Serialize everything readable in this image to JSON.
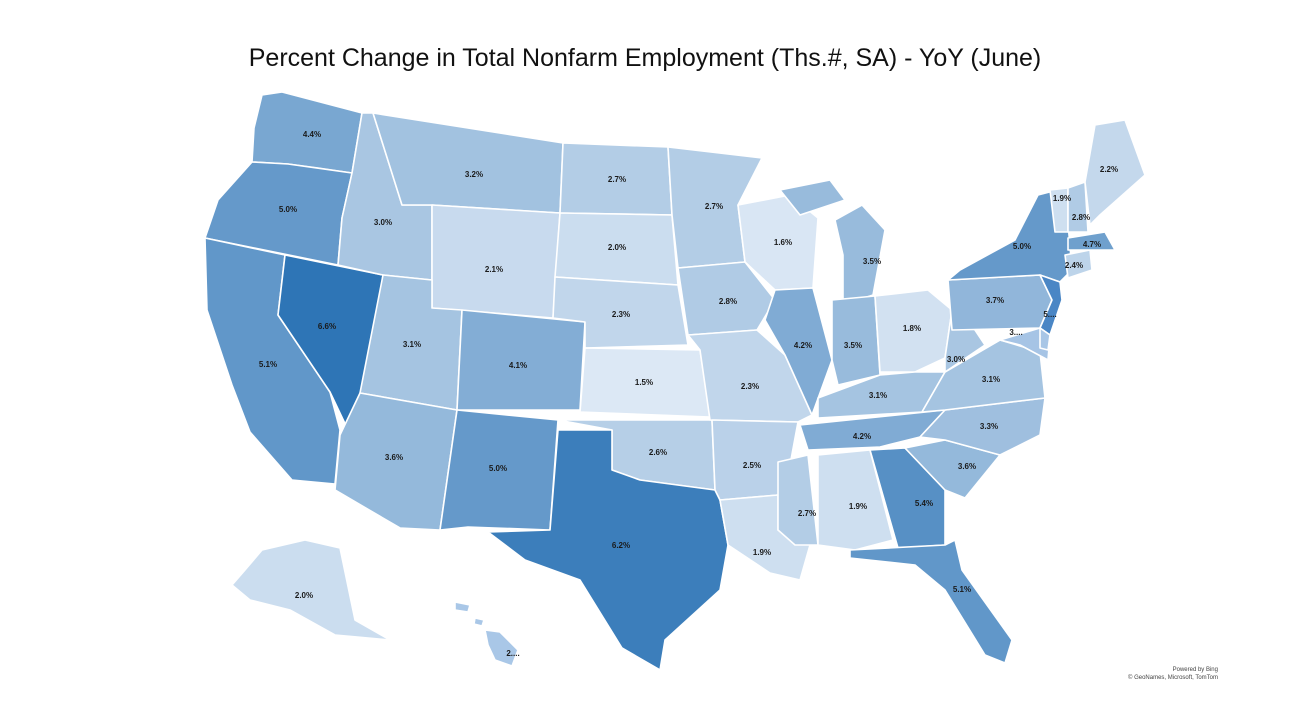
{
  "title": "Percent Change in Total Nonfarm Employment (Ths.#, SA) - YoY (June)",
  "credit": {
    "line1": "Powered by Bing",
    "line2": "© GeoNames, Microsoft, TomTom"
  },
  "color_scale": {
    "min_value": 1.5,
    "max_value": 6.6,
    "low_color": "#dce8f5",
    "high_color": "#2e75b6"
  },
  "states": [
    {
      "id": "WA",
      "value": 4.4,
      "label": "4.4%"
    },
    {
      "id": "OR",
      "value": 5.0,
      "label": "5.0%"
    },
    {
      "id": "CA",
      "value": 5.1,
      "label": "5.1%"
    },
    {
      "id": "NV",
      "value": 6.6,
      "label": "6.6%"
    },
    {
      "id": "ID",
      "value": 3.0,
      "label": "3.0%"
    },
    {
      "id": "MT",
      "value": 3.2,
      "label": "3.2%"
    },
    {
      "id": "WY",
      "value": 2.1,
      "label": "2.1%"
    },
    {
      "id": "UT",
      "value": 3.1,
      "label": "3.1%"
    },
    {
      "id": "CO",
      "value": 4.1,
      "label": "4.1%"
    },
    {
      "id": "AZ",
      "value": 3.6,
      "label": "3.6%"
    },
    {
      "id": "NM",
      "value": 5.0,
      "label": "5.0%"
    },
    {
      "id": "ND",
      "value": 2.7,
      "label": "2.7%"
    },
    {
      "id": "SD",
      "value": 2.0,
      "label": "2.0%"
    },
    {
      "id": "NE",
      "value": 2.3,
      "label": "2.3%"
    },
    {
      "id": "KS",
      "value": 1.5,
      "label": "1.5%"
    },
    {
      "id": "OK",
      "value": 2.6,
      "label": "2.6%"
    },
    {
      "id": "TX",
      "value": 6.2,
      "label": "6.2%"
    },
    {
      "id": "MN",
      "value": 2.7,
      "label": "2.7%"
    },
    {
      "id": "IA",
      "value": 2.8,
      "label": "2.8%"
    },
    {
      "id": "MO",
      "value": 2.3,
      "label": "2.3%"
    },
    {
      "id": "AR",
      "value": 2.5,
      "label": "2.5%"
    },
    {
      "id": "LA",
      "value": 1.9,
      "label": "1.9%"
    },
    {
      "id": "WI",
      "value": 1.6,
      "label": "1.6%"
    },
    {
      "id": "IL",
      "value": 4.2,
      "label": "4.2%"
    },
    {
      "id": "MI",
      "value": 3.5,
      "label": "3.5%"
    },
    {
      "id": "IN",
      "value": 3.5,
      "label": "3.5%"
    },
    {
      "id": "OH",
      "value": 1.8,
      "label": "1.8%"
    },
    {
      "id": "KY",
      "value": 3.1,
      "label": "3.1%"
    },
    {
      "id": "TN",
      "value": 4.2,
      "label": "4.2%"
    },
    {
      "id": "MS",
      "value": 2.7,
      "label": "2.7%"
    },
    {
      "id": "AL",
      "value": 1.9,
      "label": "1.9%"
    },
    {
      "id": "GA",
      "value": 5.4,
      "label": "5.4%"
    },
    {
      "id": "FL",
      "value": 5.1,
      "label": "5.1%"
    },
    {
      "id": "SC",
      "value": 3.6,
      "label": "3.6%"
    },
    {
      "id": "NC",
      "value": 3.3,
      "label": "3.3%"
    },
    {
      "id": "VA",
      "value": 3.1,
      "label": "3.1%"
    },
    {
      "id": "WV",
      "value": 3.0,
      "label": "3.0%"
    },
    {
      "id": "PA",
      "value": 3.7,
      "label": "3.7%"
    },
    {
      "id": "NY",
      "value": 5.0,
      "label": "5.0%"
    },
    {
      "id": "NJ",
      "value": null,
      "label": "5...."
    },
    {
      "id": "MD",
      "value": null,
      "label": "3...."
    },
    {
      "id": "DE",
      "value": null,
      "label": ""
    },
    {
      "id": "CT",
      "value": 2.4,
      "label": "2.4%"
    },
    {
      "id": "MA",
      "value": 4.7,
      "label": "4.7%"
    },
    {
      "id": "VT",
      "value": 1.9,
      "label": "1.9%"
    },
    {
      "id": "NH",
      "value": 2.8,
      "label": "2.8%"
    },
    {
      "id": "ME",
      "value": 2.2,
      "label": "2.2%"
    },
    {
      "id": "AK",
      "value": 2.0,
      "label": "2.0%"
    },
    {
      "id": "HI",
      "value": null,
      "label": "2...."
    }
  ],
  "fallback_colors": {
    "NJ": "#4a86c5",
    "MD": "#a6c4e5",
    "DE": "#a8c6e6",
    "HI": "#a9c7e7"
  }
}
